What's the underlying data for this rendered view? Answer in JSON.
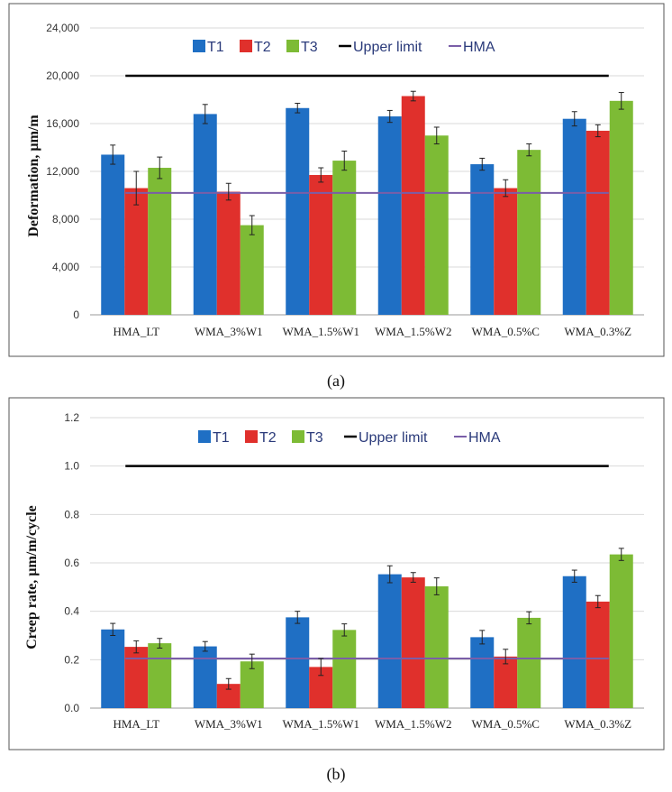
{
  "charts": [
    {
      "type": "bar",
      "caption": "(a)",
      "ylabel": "Deformation, µm/m",
      "ylim": [
        0,
        24000
      ],
      "yticks": [
        0,
        4000,
        8000,
        12000,
        16000,
        20000,
        24000
      ],
      "ytick_labels": [
        "0",
        "4,000",
        "8,000",
        "12,000",
        "16,000",
        "20,000",
        "24,000"
      ],
      "categories": [
        "HMA_LT",
        "WMA_3%W1",
        "WMA_1.5%W1",
        "WMA_1.5%W2",
        "WMA_0.5%C",
        "WMA_0.3%Z"
      ],
      "series": [
        {
          "name": "T1",
          "color": "#1f6fc4",
          "values": [
            13400,
            16800,
            17300,
            16600,
            12600,
            16400
          ],
          "errors": [
            800,
            800,
            400,
            500,
            500,
            600
          ]
        },
        {
          "name": "T2",
          "color": "#e0302c",
          "values": [
            10600,
            10300,
            11700,
            18300,
            10600,
            15400
          ],
          "errors": [
            1400,
            700,
            600,
            400,
            700,
            500
          ]
        },
        {
          "name": "T3",
          "color": "#7dbb35",
          "values": [
            12300,
            7500,
            12900,
            15000,
            13800,
            17900
          ],
          "errors": [
            900,
            800,
            800,
            700,
            500,
            700
          ]
        }
      ],
      "upper_limit": {
        "name": "Upper limit",
        "value": 20000,
        "color": "#000000"
      },
      "hma": {
        "name": "HMA",
        "value": 10200,
        "color": "#7a5ea8"
      }
    },
    {
      "type": "bar",
      "caption": "(b)",
      "ylabel": "Creep rate, µm/m/cycle",
      "ylim": [
        0,
        1.2
      ],
      "yticks": [
        0,
        0.2,
        0.4,
        0.6,
        0.8,
        1.0,
        1.2
      ],
      "ytick_labels": [
        "0.0",
        "0.2",
        "0.4",
        "0.6",
        "0.8",
        "1.0",
        "1.2"
      ],
      "categories": [
        "HMA_LT",
        "WMA_3%W1",
        "WMA_1.5%W1",
        "WMA_1.5%W2",
        "WMA_0.5%C",
        "WMA_0.3%Z"
      ],
      "series": [
        {
          "name": "T1",
          "color": "#1f6fc4",
          "values": [
            0.325,
            0.255,
            0.375,
            0.553,
            0.293,
            0.545
          ],
          "errors": [
            0.025,
            0.02,
            0.025,
            0.035,
            0.028,
            0.025
          ]
        },
        {
          "name": "T2",
          "color": "#e0302c",
          "values": [
            0.253,
            0.1,
            0.17,
            0.54,
            0.213,
            0.44
          ],
          "errors": [
            0.025,
            0.022,
            0.035,
            0.02,
            0.03,
            0.025
          ]
        },
        {
          "name": "T3",
          "color": "#7dbb35",
          "values": [
            0.268,
            0.193,
            0.323,
            0.503,
            0.373,
            0.635
          ],
          "errors": [
            0.02,
            0.03,
            0.025,
            0.035,
            0.025,
            0.025
          ]
        }
      ],
      "upper_limit": {
        "name": "Upper limit",
        "value": 1.0,
        "color": "#000000"
      },
      "hma": {
        "name": "HMA",
        "value": 0.205,
        "color": "#7a5ea8"
      }
    }
  ]
}
